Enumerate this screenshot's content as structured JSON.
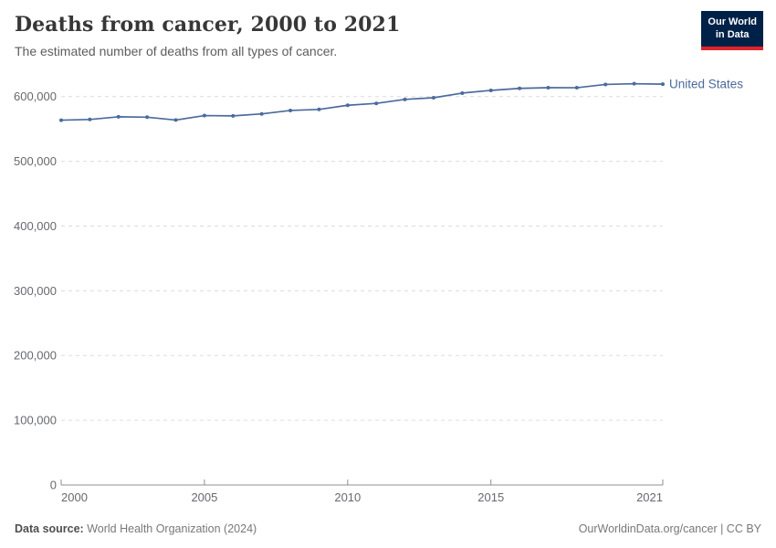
{
  "header": {
    "title": "Deaths from cancer, 2000 to 2021",
    "subtitle": "The estimated number of deaths from all types of cancer."
  },
  "logo": {
    "line1": "Our World",
    "line2": "in Data",
    "bg_color": "#002147",
    "bar_color": "#e0232c"
  },
  "chart_data": {
    "type": "line",
    "title": "Deaths from cancer, 2000 to 2021",
    "x": [
      2000,
      2001,
      2002,
      2003,
      2004,
      2005,
      2006,
      2007,
      2008,
      2009,
      2010,
      2011,
      2012,
      2013,
      2014,
      2015,
      2016,
      2017,
      2018,
      2019,
      2020,
      2021
    ],
    "series": [
      {
        "name": "United States",
        "color": "#4c6a9c",
        "values": [
          563500,
          564600,
          568700,
          568100,
          563700,
          570600,
          570100,
          573200,
          578500,
          580100,
          586500,
          589400,
          595600,
          598200,
          605300,
          609500,
          612600,
          613700,
          613600,
          618700,
          619800,
          619100
        ]
      }
    ],
    "xlim": [
      2000,
      2021
    ],
    "ylim": [
      0,
      600000
    ],
    "grid": true,
    "legend_position": "end-of-line",
    "y_ticks": [
      {
        "value": 0,
        "label": "0"
      },
      {
        "value": 100000,
        "label": "100,000"
      },
      {
        "value": 200000,
        "label": "200,000"
      },
      {
        "value": 300000,
        "label": "300,000"
      },
      {
        "value": 400000,
        "label": "400,000"
      },
      {
        "value": 500000,
        "label": "500,000"
      },
      {
        "value": 600000,
        "label": "600,000"
      }
    ],
    "x_ticks": [
      {
        "value": 2000,
        "label": "2000",
        "anchor": "start"
      },
      {
        "value": 2005,
        "label": "2005",
        "anchor": "middle"
      },
      {
        "value": 2010,
        "label": "2010",
        "anchor": "middle"
      },
      {
        "value": 2015,
        "label": "2015",
        "anchor": "middle"
      },
      {
        "value": 2021,
        "label": "2021",
        "anchor": "end"
      }
    ]
  },
  "footer": {
    "source_label": "Data source:",
    "source_value": "World Health Organization (2024)",
    "credit": "OurWorldinData.org/cancer | CC BY"
  },
  "colors": {
    "grid": "#dcdcdc",
    "axis": "#8f8f8f",
    "tick_label": "#66696e",
    "title": "#373737",
    "subtitle": "#5d5d5d"
  }
}
